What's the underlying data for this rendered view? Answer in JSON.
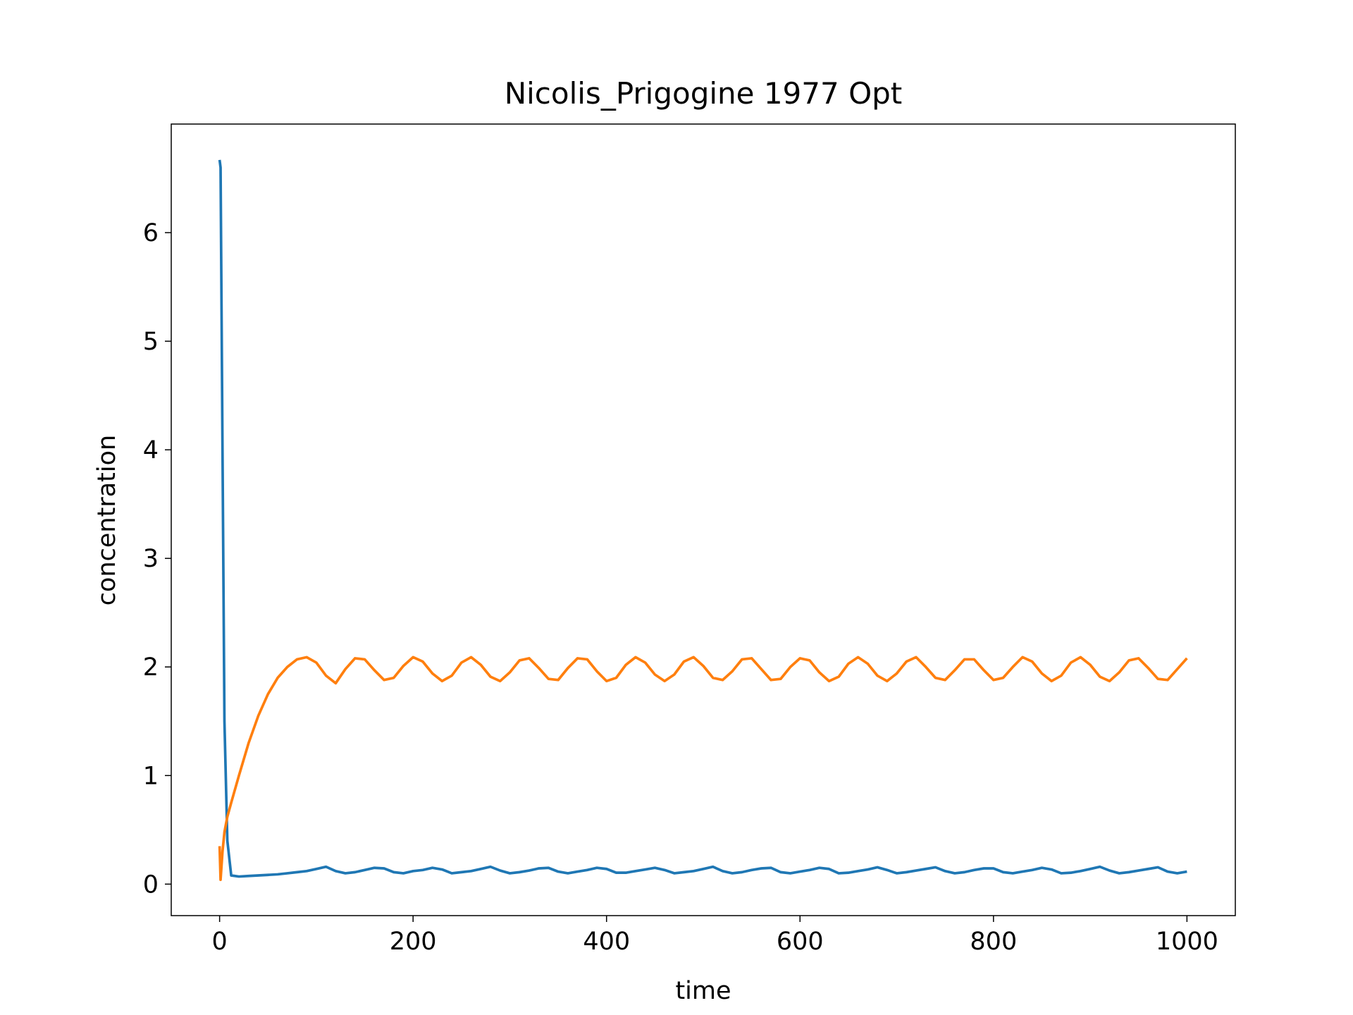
{
  "chart_data": {
    "type": "line",
    "title": "Nicolis_Prigogine 1977 Opt",
    "x_label": "time",
    "y_label": "concentration",
    "xlim": [
      -50,
      1050
    ],
    "xticks": [
      0,
      200,
      400,
      600,
      800,
      1000
    ],
    "ylim": [
      -0.29,
      7.0
    ],
    "yticks": [
      0,
      1,
      2,
      3,
      4,
      5,
      6
    ],
    "grid": false,
    "x": [
      0,
      1,
      3,
      5,
      8,
      12,
      20,
      30,
      40,
      50,
      60,
      70,
      80,
      90,
      100,
      110,
      120,
      130,
      140,
      150,
      160,
      170,
      180,
      190,
      200,
      210,
      220,
      230,
      240,
      250,
      260,
      270,
      280,
      290,
      300,
      310,
      320,
      330,
      340,
      350,
      360,
      370,
      380,
      390,
      400,
      410,
      420,
      430,
      440,
      450,
      460,
      470,
      480,
      490,
      500,
      510,
      520,
      530,
      540,
      550,
      560,
      570,
      580,
      590,
      600,
      610,
      620,
      630,
      640,
      650,
      660,
      670,
      680,
      690,
      700,
      710,
      720,
      730,
      740,
      750,
      760,
      770,
      780,
      790,
      800,
      810,
      820,
      830,
      840,
      850,
      860,
      870,
      880,
      890,
      900,
      910,
      920,
      930,
      940,
      950,
      960,
      970,
      980,
      990,
      1000
    ],
    "series": [
      {
        "color": "#1f77b4",
        "values": [
          6.67,
          6.6,
          4.0,
          1.5,
          0.4,
          0.08,
          0.07,
          0.075,
          0.08,
          0.085,
          0.09,
          0.1,
          0.11,
          0.12,
          0.14,
          0.16,
          0.12,
          0.1,
          0.11,
          0.13,
          0.15,
          0.145,
          0.11,
          0.1,
          0.12,
          0.13,
          0.15,
          0.135,
          0.1,
          0.11,
          0.12,
          0.14,
          0.16,
          0.125,
          0.1,
          0.11,
          0.125,
          0.145,
          0.15,
          0.115,
          0.1,
          0.115,
          0.13,
          0.15,
          0.14,
          0.105,
          0.105,
          0.12,
          0.135,
          0.15,
          0.13,
          0.1,
          0.11,
          0.12,
          0.14,
          0.16,
          0.12,
          0.1,
          0.11,
          0.13,
          0.145,
          0.15,
          0.11,
          0.1,
          0.115,
          0.13,
          0.15,
          0.14,
          0.1,
          0.105,
          0.12,
          0.135,
          0.155,
          0.13,
          0.1,
          0.11,
          0.125,
          0.14,
          0.155,
          0.12,
          0.1,
          0.11,
          0.13,
          0.145,
          0.145,
          0.11,
          0.1,
          0.115,
          0.13,
          0.15,
          0.135,
          0.1,
          0.105,
          0.12,
          0.14,
          0.16,
          0.125,
          0.1,
          0.11,
          0.125,
          0.14,
          0.155,
          0.115,
          0.1,
          0.115
        ]
      },
      {
        "color": "#ff7f0e",
        "values": [
          0.35,
          0.04,
          0.3,
          0.48,
          0.62,
          0.75,
          1.0,
          1.3,
          1.55,
          1.75,
          1.9,
          2.0,
          2.07,
          2.09,
          2.04,
          1.92,
          1.85,
          1.98,
          2.08,
          2.07,
          1.97,
          1.88,
          1.9,
          2.01,
          2.09,
          2.05,
          1.94,
          1.87,
          1.92,
          2.04,
          2.09,
          2.02,
          1.91,
          1.87,
          1.95,
          2.06,
          2.08,
          1.99,
          1.89,
          1.88,
          1.99,
          2.08,
          2.07,
          1.96,
          1.87,
          1.9,
          2.02,
          2.09,
          2.04,
          1.93,
          1.87,
          1.93,
          2.05,
          2.09,
          2.01,
          1.9,
          1.88,
          1.96,
          2.07,
          2.08,
          1.98,
          1.88,
          1.89,
          2.0,
          2.08,
          2.06,
          1.95,
          1.87,
          1.91,
          2.03,
          2.09,
          2.03,
          1.92,
          1.87,
          1.94,
          2.05,
          2.09,
          2.0,
          1.9,
          1.88,
          1.97,
          2.07,
          2.07,
          1.97,
          1.88,
          1.9,
          2.0,
          2.09,
          2.05,
          1.94,
          1.87,
          1.92,
          2.04,
          2.09,
          2.02,
          1.91,
          1.87,
          1.95,
          2.06,
          2.08,
          1.99,
          1.89,
          1.88,
          1.98,
          2.08
        ]
      }
    ]
  }
}
